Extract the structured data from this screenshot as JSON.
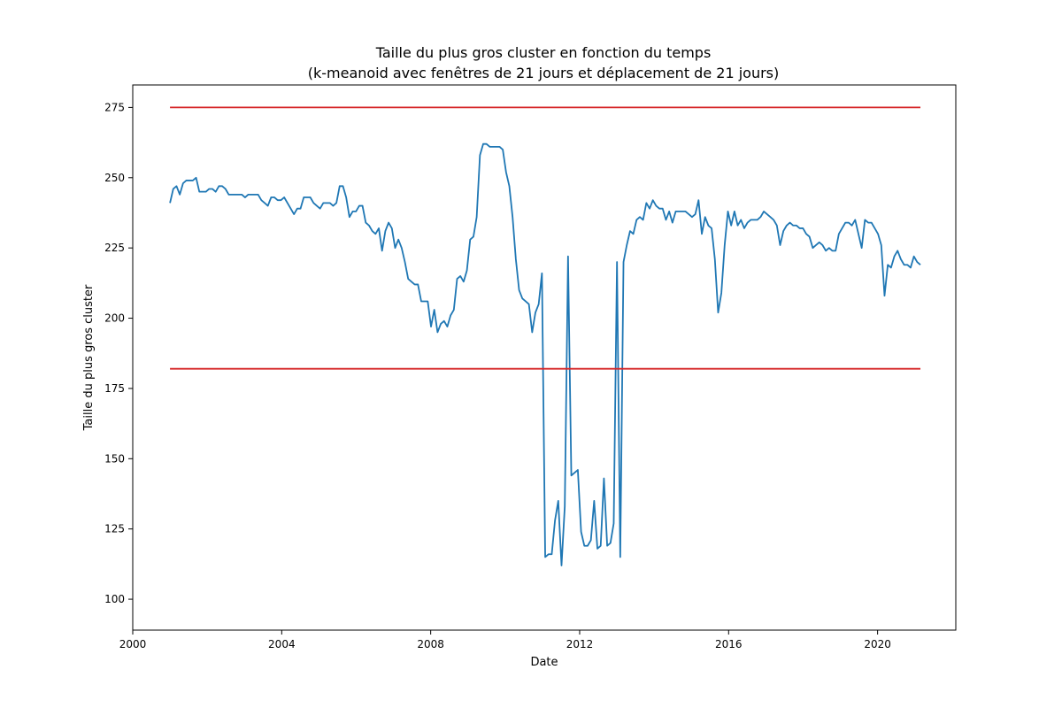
{
  "chart_data": {
    "type": "line",
    "title": "Taille du plus gros cluster en fonction du temps",
    "subtitle": "(k-meanoid avec fenêtres de 21 jours et déplacement de 21 jours)",
    "xlabel": "Date",
    "ylabel": "Taille du plus gros cluster",
    "xlim": [
      2000,
      2022.1
    ],
    "ylim": [
      89,
      283
    ],
    "x_ticks": [
      2000,
      2004,
      2008,
      2012,
      2016,
      2020
    ],
    "y_ticks": [
      100,
      125,
      150,
      175,
      200,
      225,
      250,
      275
    ],
    "grid": false,
    "series": [
      {
        "color": "#1f77b4",
        "points": [
          [
            2001.0,
            241
          ],
          [
            2001.12,
            246
          ],
          [
            2001.24,
            247
          ],
          [
            2001.36,
            244
          ],
          [
            2001.48,
            248
          ],
          [
            2001.6,
            249
          ],
          [
            2001.72,
            249
          ],
          [
            2001.84,
            249
          ],
          [
            2001.96,
            250
          ],
          [
            2002.08,
            245
          ],
          [
            2002.2,
            245
          ],
          [
            2002.32,
            245
          ],
          [
            2002.44,
            246
          ],
          [
            2002.56,
            246
          ],
          [
            2002.68,
            245
          ],
          [
            2002.8,
            247
          ],
          [
            2002.92,
            247
          ],
          [
            2003.04,
            246
          ],
          [
            2003.16,
            244
          ],
          [
            2003.28,
            244
          ],
          [
            2003.4,
            244
          ],
          [
            2003.52,
            244
          ],
          [
            2003.64,
            244
          ],
          [
            2003.76,
            243
          ],
          [
            2003.88,
            244
          ],
          [
            2004.0,
            244
          ],
          [
            2003.76,
            243
          ],
          [
            2004.0,
            244
          ],
          [
            2004.12,
            242
          ],
          [
            2004.24,
            241
          ],
          [
            2004.36,
            240
          ],
          [
            2004.48,
            243
          ],
          [
            2004.6,
            243
          ],
          [
            2004.72,
            242
          ],
          [
            2004.84,
            242
          ],
          [
            2004.96,
            243
          ],
          [
            2005.08,
            241
          ],
          [
            2005.2,
            239
          ],
          [
            2005.32,
            237
          ],
          [
            2005.44,
            239
          ],
          [
            2005.56,
            239
          ],
          [
            2005.68,
            243
          ],
          [
            2005.8,
            243
          ],
          [
            2005.92,
            243
          ],
          [
            2006.04,
            241
          ],
          [
            2006.16,
            240
          ],
          [
            2006.28,
            239
          ],
          [
            2006.4,
            241
          ],
          [
            2006.52,
            241
          ],
          [
            2006.64,
            241
          ],
          [
            2006.76,
            240
          ],
          [
            2006.88,
            241
          ],
          [
            2007.0,
            247
          ],
          [
            2007.12,
            247
          ],
          [
            2007.24,
            243
          ],
          [
            2007.36,
            236
          ],
          [
            2007.48,
            238
          ],
          [
            2007.6,
            238
          ],
          [
            2007.72,
            240
          ],
          [
            2007.84,
            240
          ],
          [
            2007.96,
            234
          ],
          [
            2008.08,
            233
          ],
          [
            2008.2,
            231
          ],
          [
            2008.32,
            230
          ],
          [
            2008.44,
            232
          ],
          [
            2008.56,
            224
          ],
          [
            2008.68,
            231
          ],
          [
            2008.8,
            234
          ],
          [
            2008.92,
            232
          ]
        ]
      },
      {
        "color": "#d62728",
        "points": [
          [
            2001.0,
            275
          ],
          [
            2021.15,
            275
          ]
        ]
      },
      {
        "color": "#d62728",
        "points": [
          [
            2001.0,
            182
          ],
          [
            2021.15,
            182
          ]
        ]
      }
    ]
  }
}
